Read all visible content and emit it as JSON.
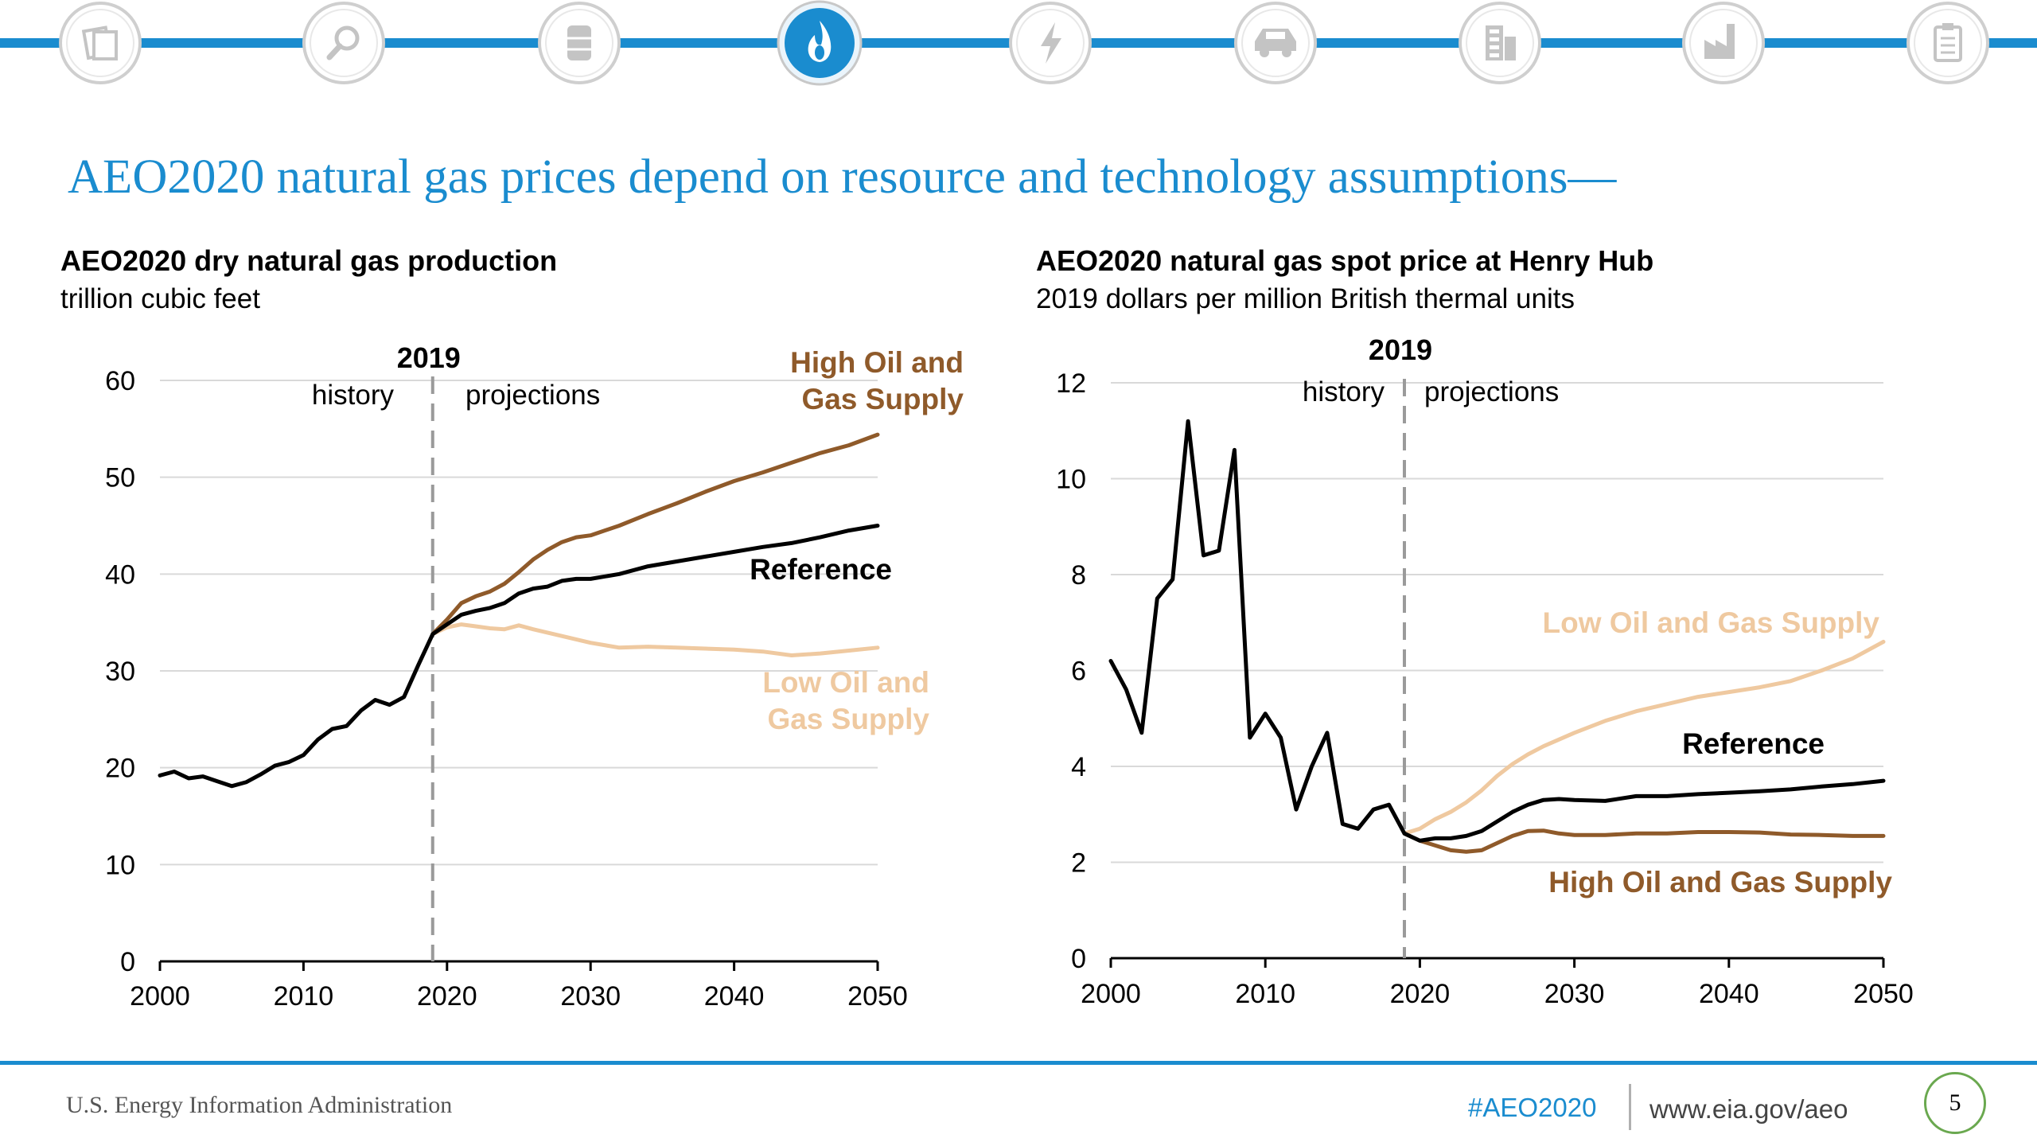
{
  "slide": {
    "title": "AEO2020 natural gas prices depend on resource and technology assumptions—",
    "page_number": "5",
    "accent_color": "#1a8ccf"
  },
  "nav": {
    "icons": [
      "documents-icon",
      "search-magnifier-icon",
      "oil-barrel-icon",
      "natural-gas-flame-icon",
      "electricity-bolt-icon",
      "car-icon",
      "buildings-icon",
      "industry-factory-icon",
      "clipboard-icon"
    ],
    "active": "natural-gas-flame-icon"
  },
  "footer": {
    "organization": "U.S. Energy Information Administration",
    "hashtag": "#AEO2020",
    "url": "www.eia.gov/aeo"
  },
  "colors": {
    "reference": "#000000",
    "high_supply": "#8f5a2a",
    "low_supply": "#efc9a0",
    "grid": "#d9d9d9",
    "divider": "#9a9a9a"
  },
  "chart_data": [
    {
      "type": "line",
      "title": "AEO2020 dry natural gas production",
      "subtitle": "trillion cubic feet",
      "xlim": [
        2000,
        2050
      ],
      "ylim": [
        0,
        60
      ],
      "x_ticks": [
        2000,
        2010,
        2020,
        2030,
        2040,
        2050
      ],
      "y_ticks": [
        0,
        10,
        20,
        30,
        40,
        50,
        60
      ],
      "grid": "horizontal",
      "divider": {
        "x": 2019,
        "label": "2019",
        "left_label": "history",
        "right_label": "projections"
      },
      "series": [
        {
          "name": "Reference",
          "label": "Reference",
          "color": "#000000",
          "x": [
            2000,
            2001,
            2002,
            2003,
            2004,
            2005,
            2006,
            2007,
            2008,
            2009,
            2010,
            2011,
            2012,
            2013,
            2014,
            2015,
            2016,
            2017,
            2018,
            2019,
            2020,
            2021,
            2022,
            2023,
            2024,
            2025,
            2026,
            2027,
            2028,
            2029,
            2030,
            2032,
            2034,
            2036,
            2038,
            2040,
            2042,
            2044,
            2046,
            2048,
            2050
          ],
          "y": [
            19.2,
            19.6,
            18.9,
            19.1,
            18.6,
            18.1,
            18.5,
            19.3,
            20.2,
            20.6,
            21.3,
            22.9,
            24.0,
            24.3,
            25.9,
            27.0,
            26.5,
            27.3,
            30.6,
            33.8,
            34.8,
            35.8,
            36.2,
            36.5,
            37.0,
            38.0,
            38.5,
            38.7,
            39.3,
            39.5,
            39.5,
            40.0,
            40.8,
            41.3,
            41.8,
            42.3,
            42.8,
            43.2,
            43.8,
            44.5,
            45.0
          ]
        },
        {
          "name": "High Oil and Gas Supply",
          "label": "High Oil and Gas Supply",
          "color": "#8f5a2a",
          "x": [
            2019,
            2020,
            2021,
            2022,
            2023,
            2024,
            2025,
            2026,
            2027,
            2028,
            2029,
            2030,
            2032,
            2034,
            2036,
            2038,
            2040,
            2042,
            2044,
            2046,
            2048,
            2050
          ],
          "y": [
            33.8,
            35.3,
            37.0,
            37.7,
            38.2,
            39.0,
            40.2,
            41.5,
            42.5,
            43.3,
            43.8,
            44.0,
            45.0,
            46.2,
            47.3,
            48.5,
            49.6,
            50.5,
            51.5,
            52.5,
            53.3,
            54.4
          ]
        },
        {
          "name": "Low Oil and Gas Supply",
          "label": "Low Oil and Gas Supply",
          "color": "#efc9a0",
          "x": [
            2019,
            2020,
            2021,
            2022,
            2023,
            2024,
            2025,
            2026,
            2028,
            2030,
            2032,
            2034,
            2036,
            2038,
            2040,
            2042,
            2044,
            2046,
            2048,
            2050
          ],
          "y": [
            33.8,
            34.5,
            34.8,
            34.6,
            34.4,
            34.3,
            34.7,
            34.3,
            33.6,
            32.9,
            32.4,
            32.5,
            32.4,
            32.3,
            32.2,
            32.0,
            31.6,
            31.8,
            32.1,
            32.4
          ]
        }
      ]
    },
    {
      "type": "line",
      "title": "AEO2020 natural gas spot price at Henry Hub",
      "subtitle": "2019 dollars per million British thermal units",
      "xlim": [
        2000,
        2050
      ],
      "ylim": [
        0,
        12
      ],
      "x_ticks": [
        2000,
        2010,
        2020,
        2030,
        2040,
        2050
      ],
      "y_ticks": [
        0,
        2,
        4,
        6,
        8,
        10,
        12
      ],
      "grid": "horizontal",
      "divider": {
        "x": 2019,
        "label": "2019",
        "left_label": "history",
        "right_label": "projections"
      },
      "series": [
        {
          "name": "Reference",
          "label": "Reference",
          "color": "#000000",
          "x": [
            2000,
            2001,
            2002,
            2003,
            2004,
            2005,
            2006,
            2007,
            2008,
            2009,
            2010,
            2011,
            2012,
            2013,
            2014,
            2015,
            2016,
            2017,
            2018,
            2019,
            2020,
            2021,
            2022,
            2023,
            2024,
            2025,
            2026,
            2027,
            2028,
            2029,
            2030,
            2032,
            2034,
            2036,
            2038,
            2040,
            2042,
            2044,
            2046,
            2048,
            2050
          ],
          "y": [
            6.2,
            5.6,
            4.7,
            7.5,
            7.9,
            11.2,
            8.4,
            8.5,
            10.6,
            4.6,
            5.1,
            4.6,
            3.1,
            4.0,
            4.7,
            2.8,
            2.7,
            3.1,
            3.2,
            2.6,
            2.45,
            2.5,
            2.5,
            2.55,
            2.65,
            2.85,
            3.05,
            3.2,
            3.3,
            3.32,
            3.3,
            3.28,
            3.38,
            3.38,
            3.42,
            3.45,
            3.48,
            3.52,
            3.58,
            3.63,
            3.7
          ]
        },
        {
          "name": "High Oil and Gas Supply",
          "label": "High Oil and Gas Supply",
          "color": "#8f5a2a",
          "x": [
            2019,
            2020,
            2021,
            2022,
            2023,
            2024,
            2025,
            2026,
            2027,
            2028,
            2029,
            2030,
            2032,
            2034,
            2036,
            2038,
            2040,
            2042,
            2044,
            2046,
            2048,
            2050
          ],
          "y": [
            2.6,
            2.45,
            2.35,
            2.25,
            2.22,
            2.25,
            2.4,
            2.55,
            2.65,
            2.66,
            2.6,
            2.57,
            2.57,
            2.6,
            2.6,
            2.63,
            2.63,
            2.62,
            2.58,
            2.57,
            2.55,
            2.55
          ]
        },
        {
          "name": "Low Oil and Gas Supply",
          "label": "Low Oil and Gas Supply",
          "color": "#efc9a0",
          "x": [
            2019,
            2020,
            2021,
            2022,
            2023,
            2024,
            2025,
            2026,
            2027,
            2028,
            2030,
            2032,
            2034,
            2036,
            2038,
            2040,
            2042,
            2044,
            2046,
            2048,
            2050
          ],
          "y": [
            2.6,
            2.7,
            2.9,
            3.05,
            3.25,
            3.5,
            3.8,
            4.05,
            4.25,
            4.42,
            4.7,
            4.95,
            5.15,
            5.3,
            5.45,
            5.55,
            5.65,
            5.78,
            6.0,
            6.25,
            6.6
          ]
        }
      ]
    }
  ]
}
